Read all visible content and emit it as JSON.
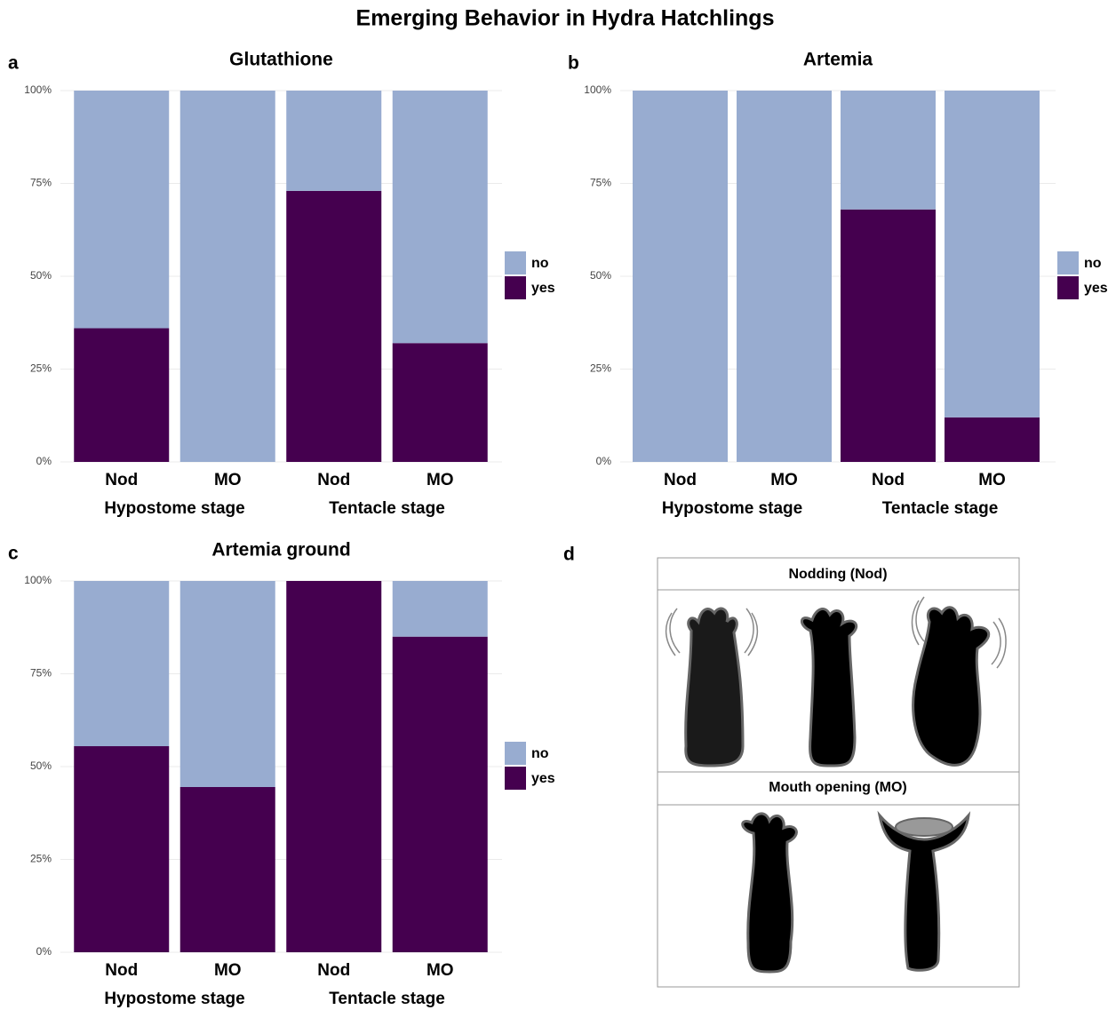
{
  "title": "Emerging Behavior in Hydra Hatchlings",
  "chart_data": [
    {
      "type": "bar",
      "stacked": true,
      "panel": "a",
      "title": "Glutathione",
      "categories": [
        "Nod",
        "MO",
        "Nod",
        "MO"
      ],
      "category_groups": [
        "Hypostome stage",
        "Tentacle stage"
      ],
      "series": [
        {
          "name": "no",
          "color": "#98acd0",
          "values": [
            64,
            100,
            27,
            68
          ]
        },
        {
          "name": "yes",
          "color": "#45004f",
          "values": [
            36,
            0,
            73,
            32
          ]
        }
      ],
      "ylim": [
        0,
        100
      ],
      "yticks": [
        {
          "value": 0,
          "label": "0%"
        },
        {
          "value": 25,
          "label": "25%"
        },
        {
          "value": 50,
          "label": "50%"
        },
        {
          "value": 75,
          "label": "75%"
        },
        {
          "value": 100,
          "label": "100%"
        }
      ],
      "grid": true,
      "legend": "right"
    },
    {
      "type": "bar",
      "stacked": true,
      "panel": "b",
      "title": "Artemia",
      "categories": [
        "Nod",
        "MO",
        "Nod",
        "MO"
      ],
      "category_groups": [
        "Hypostome stage",
        "Tentacle stage"
      ],
      "series": [
        {
          "name": "no",
          "color": "#98acd0",
          "values": [
            100,
            100,
            32,
            88
          ]
        },
        {
          "name": "yes",
          "color": "#45004f",
          "values": [
            0,
            0,
            68,
            12
          ]
        }
      ],
      "ylim": [
        0,
        100
      ],
      "yticks": [
        {
          "value": 0,
          "label": "0%"
        },
        {
          "value": 25,
          "label": "25%"
        },
        {
          "value": 50,
          "label": "50%"
        },
        {
          "value": 75,
          "label": "75%"
        },
        {
          "value": 100,
          "label": "100%"
        }
      ],
      "grid": true,
      "legend": "right"
    },
    {
      "type": "bar",
      "stacked": true,
      "panel": "c",
      "title": "Artemia ground",
      "categories": [
        "Nod",
        "MO",
        "Nod",
        "MO"
      ],
      "category_groups": [
        "Hypostome stage",
        "Tentacle stage"
      ],
      "series": [
        {
          "name": "no",
          "color": "#98acd0",
          "values": [
            44.5,
            55.5,
            0,
            15
          ]
        },
        {
          "name": "yes",
          "color": "#45004f",
          "values": [
            55.5,
            44.5,
            100,
            85
          ]
        }
      ],
      "ylim": [
        0,
        100
      ],
      "yticks": [
        {
          "value": 0,
          "label": "0%"
        },
        {
          "value": 25,
          "label": "25%"
        },
        {
          "value": 50,
          "label": "50%"
        },
        {
          "value": 75,
          "label": "75%"
        },
        {
          "value": 100,
          "label": "100%"
        }
      ],
      "grid": true,
      "legend": "right"
    }
  ],
  "diagram": {
    "panel": "d",
    "sections": [
      {
        "label": "Nodding (Nod)"
      },
      {
        "label": "Mouth opening (MO)"
      }
    ]
  }
}
